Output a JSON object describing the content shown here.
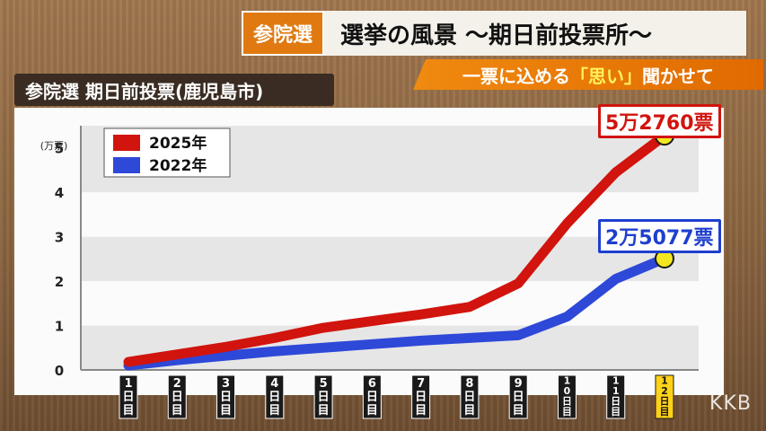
{
  "header": {
    "tag": "参院選",
    "title": "選挙の風景 ～期日前投票所～",
    "subtitle_parts": [
      "一票に込める",
      "「思い」",
      "聞かせて"
    ]
  },
  "logo": "KKB",
  "chart_data": {
    "type": "line",
    "title": "参院選 期日前投票(鹿児島市)",
    "ylabel": "(万票)",
    "ylim": [
      0,
      5.5
    ],
    "yticks": [
      0,
      1,
      2,
      3,
      4,
      5
    ],
    "categories": [
      "1日目",
      "2日目",
      "3日目",
      "4日目",
      "5日目",
      "6日目",
      "7日目",
      "8日目",
      "9日目",
      "10日目",
      "11日目",
      "12日目"
    ],
    "highlight_category": "12日目",
    "legend_position": "top-left",
    "grid": "horizontal-bands",
    "series": [
      {
        "name": "2025年",
        "color": "#d1140e",
        "values": [
          0.18,
          0.35,
          0.52,
          0.72,
          0.95,
          1.1,
          1.25,
          1.42,
          1.95,
          3.3,
          4.45,
          5.276
        ]
      },
      {
        "name": "2022年",
        "color": "#2e48d8",
        "values": [
          0.1,
          0.22,
          0.32,
          0.42,
          0.5,
          0.58,
          0.66,
          0.72,
          0.78,
          1.2,
          2.05,
          2.5077
        ]
      }
    ],
    "annotations": [
      {
        "series": "2025年",
        "text": "5万2760票"
      },
      {
        "series": "2022年",
        "text": "2万5077票"
      }
    ]
  }
}
